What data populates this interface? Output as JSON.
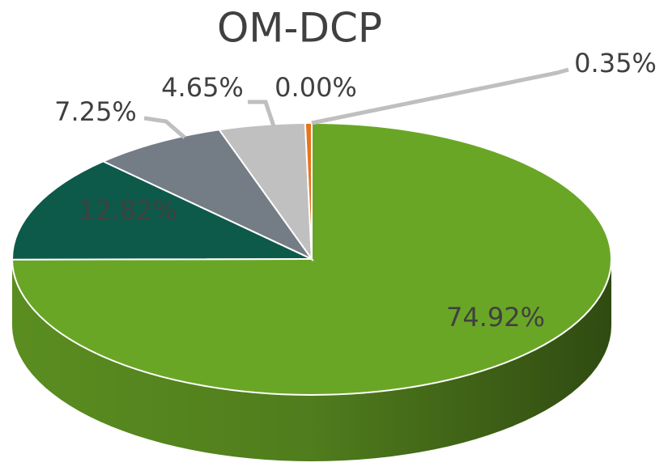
{
  "chart_data": {
    "type": "pie",
    "title": "OM-DCP",
    "categories": [
      null,
      null,
      null,
      null,
      null,
      null
    ],
    "values": [
      74.92,
      12.82,
      7.25,
      4.65,
      0.0,
      0.35
    ],
    "value_labels": [
      "74.92%",
      "12.82%",
      "7.25%",
      "4.65%",
      "0.00%",
      "0.35%"
    ],
    "colors": [
      "#6aa626",
      "#0d5a4a",
      "#747c86",
      "#c0c0c0",
      "#d9d9d9",
      "#e8731e"
    ]
  }
}
